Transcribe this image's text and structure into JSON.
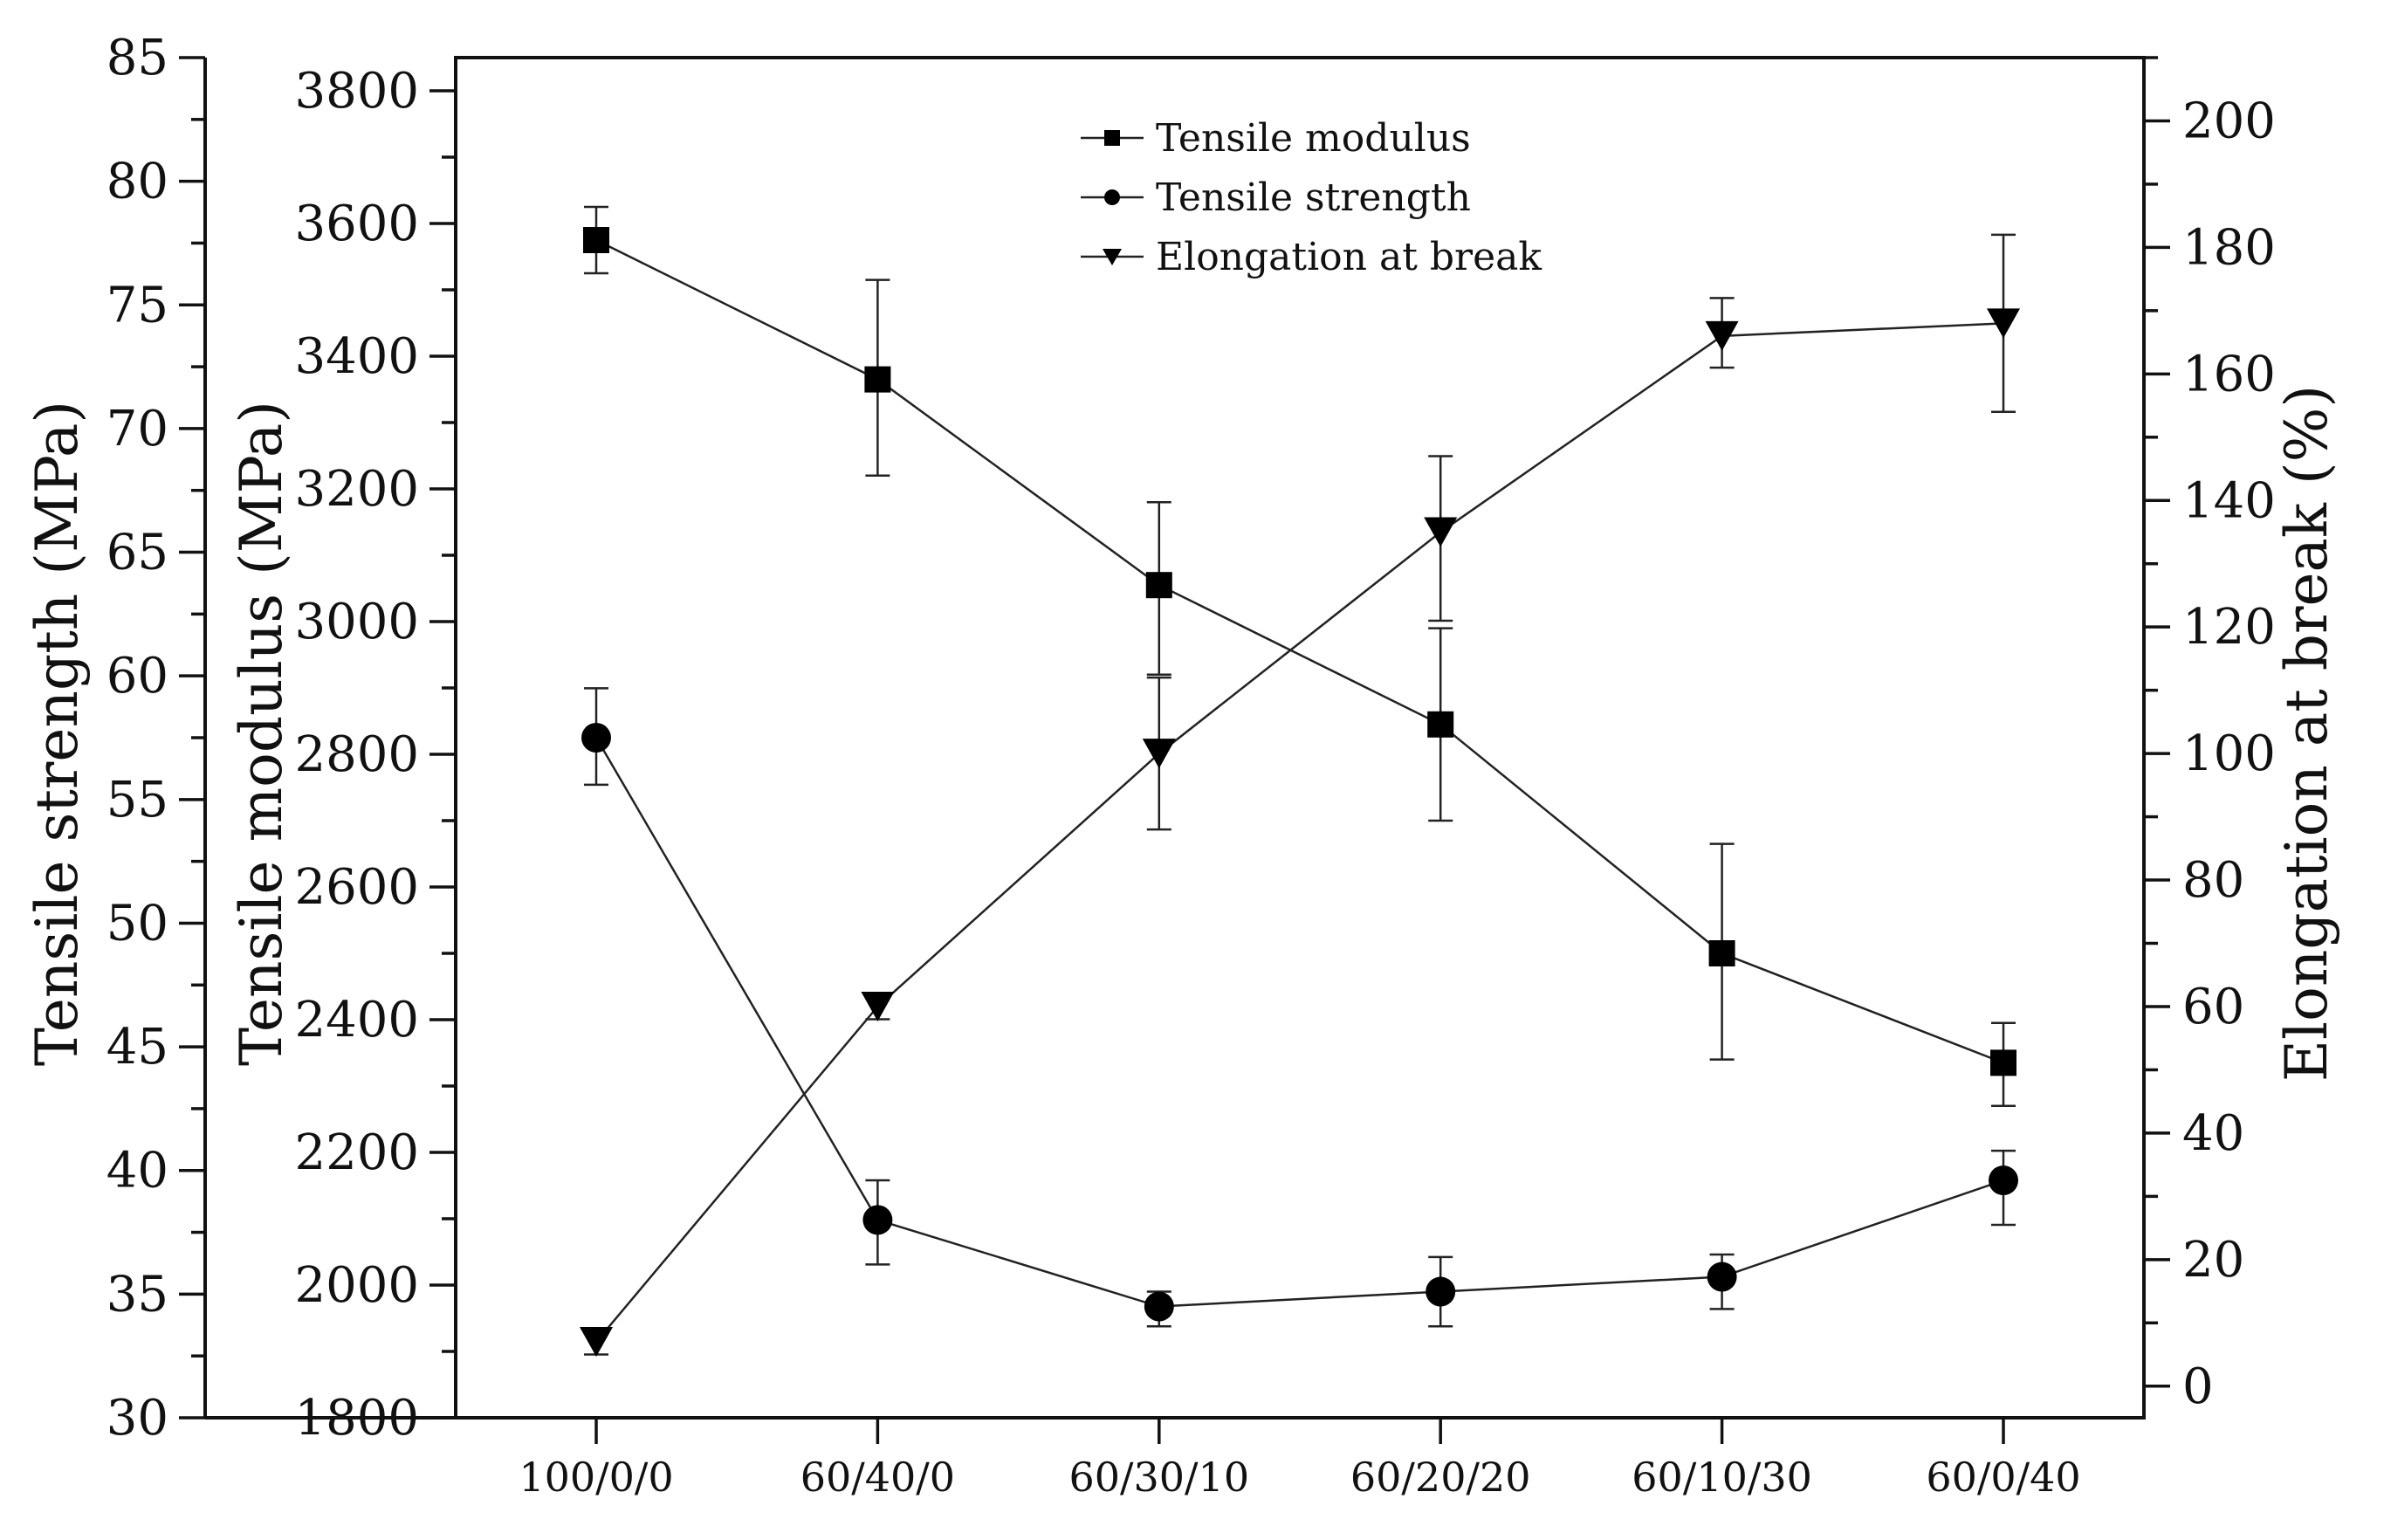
{
  "chart_data": {
    "type": "line",
    "categories": [
      "100/0/0",
      "60/40/0",
      "60/30/10",
      "60/20/20",
      "60/10/30",
      "60/0/40"
    ],
    "axes": {
      "strength": {
        "label": "Tensile strength (MPa)",
        "min": 30,
        "max": 85,
        "ticks": [
          30,
          35,
          40,
          45,
          50,
          55,
          60,
          65,
          70,
          75,
          80,
          85
        ]
      },
      "modulus": {
        "label": "Tensile modulus (MPa)",
        "min": 1800,
        "max": 3850,
        "ticks": [
          1800,
          2000,
          2200,
          2400,
          2600,
          2800,
          3000,
          3200,
          3400,
          3600,
          3800
        ]
      },
      "elongation": {
        "label": "Elongation at break (%)",
        "min": -5,
        "max": 210,
        "ticks": [
          0,
          20,
          40,
          60,
          80,
          100,
          120,
          140,
          160,
          180,
          200
        ]
      }
    },
    "series": [
      {
        "name": "Tensile modulus",
        "axis": "modulus",
        "marker": "square",
        "values": [
          3575,
          3365,
          3055,
          2845,
          2500,
          2335
        ],
        "err_low": [
          3525,
          3220,
          2920,
          2700,
          2340,
          2270
        ],
        "err_high": [
          3625,
          3515,
          3180,
          2990,
          2665,
          2395
        ]
      },
      {
        "name": "Tensile strength",
        "axis": "strength",
        "marker": "circle",
        "values": [
          57.5,
          38.0,
          34.5,
          35.1,
          35.7,
          39.6
        ],
        "err_low": [
          55.6,
          36.2,
          33.7,
          33.7,
          34.4,
          37.8
        ],
        "err_high": [
          59.5,
          39.6,
          35.1,
          36.5,
          36.6,
          40.8
        ]
      },
      {
        "name": "Elongation at break",
        "axis": "elongation",
        "marker": "triangle-down",
        "values": [
          7,
          60,
          100,
          135,
          166,
          168
        ],
        "err_low": [
          5,
          58,
          88,
          121,
          161,
          154
        ],
        "err_high": [
          9,
          62,
          112,
          147,
          172,
          182
        ]
      }
    ],
    "legend": {
      "position": "top-center"
    }
  }
}
